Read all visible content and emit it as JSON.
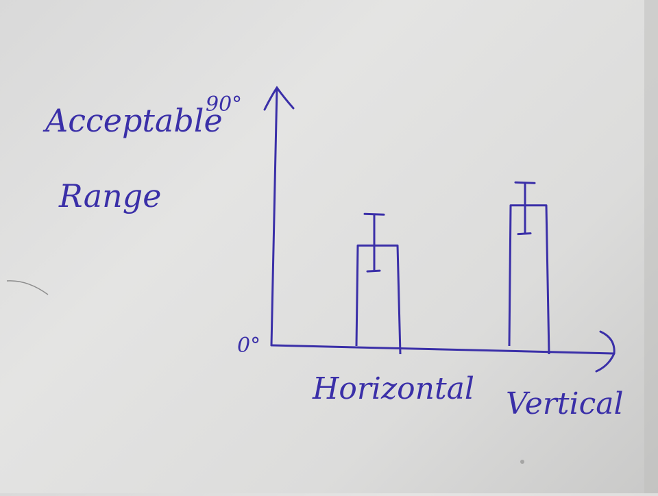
{
  "ink_color": "#3a2fa8",
  "chart_data": {
    "type": "bar",
    "ylabel_lines": [
      "Acceptable",
      "Range"
    ],
    "yticks": [
      "0°",
      "90°"
    ],
    "ylim": [
      0,
      90
    ],
    "categories": [
      "Horizontal",
      "Vertical"
    ],
    "values": [
      35,
      49
    ],
    "error_low": [
      26,
      39
    ],
    "error_high": [
      46,
      57
    ],
    "grid": false,
    "handwritten": true
  }
}
